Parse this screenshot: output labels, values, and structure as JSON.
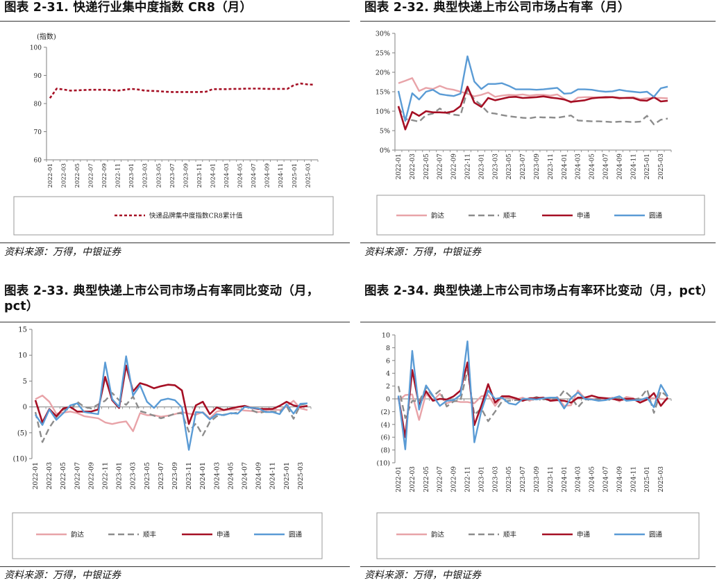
{
  "colors": {
    "yunda": "#e8a3a8",
    "sf": "#8c8c8c",
    "sto": "#a50f24",
    "zto": "#5a9bd5",
    "cr8": "#a50f24",
    "axis": "#7f7f7f"
  },
  "chart_data": [
    {
      "id": "c1",
      "type": "line",
      "title": "图表 2-31. 快递行业集中度指数 CR8（月）",
      "source": "资料来源：万得，中银证券",
      "ylabel": "(指数)",
      "ylim": [
        60,
        100
      ],
      "yticks": [
        "60",
        "70",
        "80",
        "90",
        "100"
      ],
      "x": [
        "2022-01",
        "2022-02",
        "2022-03",
        "2022-04",
        "2022-05",
        "2022-06",
        "2022-07",
        "2022-08",
        "2022-09",
        "2022-10",
        "2022-11",
        "2022-12",
        "2023-01",
        "2023-02",
        "2023-03",
        "2023-04",
        "2023-05",
        "2023-06",
        "2023-07",
        "2023-08",
        "2023-09",
        "2023-10",
        "2023-11",
        "2023-12",
        "2024-01",
        "2024-02",
        "2024-03",
        "2024-04",
        "2024-05",
        "2024-06",
        "2024-07",
        "2024-08",
        "2024-09",
        "2024-10",
        "2024-11",
        "2024-12",
        "2025-01",
        "2025-02",
        "2025-03",
        "2025-04"
      ],
      "xticks": [
        "2022-01",
        "2022-03",
        "2022-05",
        "2022-07",
        "2022-09",
        "2022-11",
        "2023-01",
        "2023-03",
        "2023-05",
        "2023-07",
        "2023-09",
        "2023-11",
        "2024-01",
        "2024-03",
        "2024-05",
        "2024-07",
        "2024-09",
        "2024-11",
        "2025-01",
        "2025-03"
      ],
      "series": [
        {
          "name": "快递品牌集中度指数CR8累计值",
          "color_key": "cr8",
          "values": [
            81.9,
            85.3,
            85.0,
            84.6,
            84.7,
            84.8,
            84.9,
            84.9,
            84.9,
            84.8,
            84.6,
            84.9,
            85.2,
            85.0,
            84.6,
            84.5,
            84.4,
            84.2,
            84.1,
            84.1,
            84.1,
            84.1,
            84.1,
            84.2,
            85.1,
            85.1,
            85.1,
            85.2,
            85.2,
            85.3,
            85.3,
            85.3,
            85.2,
            85.2,
            85.2,
            85.2,
            86.6,
            87.1,
            86.8,
            86.7
          ]
        }
      ]
    },
    {
      "id": "c2",
      "type": "line",
      "title": "图表 2-32. 典型快递上市公司市场占有率（月）",
      "source": "资料来源：万得，中银证券",
      "ylim": [
        0,
        30
      ],
      "yticks": [
        "0%",
        "5%",
        "10%",
        "15%",
        "20%",
        "25%",
        "30%"
      ],
      "x": [
        "2022-01",
        "2022-02",
        "2022-03",
        "2022-04",
        "2022-05",
        "2022-06",
        "2022-07",
        "2022-08",
        "2022-09",
        "2022-10",
        "2022-11",
        "2022-12",
        "2023-01",
        "2023-02",
        "2023-03",
        "2023-04",
        "2023-05",
        "2023-06",
        "2023-07",
        "2023-08",
        "2023-09",
        "2023-10",
        "2023-11",
        "2023-12",
        "2024-01",
        "2024-02",
        "2024-03",
        "2024-04",
        "2024-05",
        "2024-06",
        "2024-07",
        "2024-08",
        "2024-09",
        "2024-10",
        "2024-11",
        "2024-12",
        "2025-01",
        "2025-02",
        "2025-03",
        "2025-04"
      ],
      "xticks": [
        "2022-01",
        "2022-03",
        "2022-05",
        "2022-07",
        "2022-09",
        "2022-11",
        "2023-01",
        "2023-03",
        "2023-05",
        "2023-07",
        "2023-09",
        "2023-11",
        "2024-01",
        "2024-03",
        "2024-05",
        "2024-07",
        "2024-09",
        "2024-11",
        "2025-01",
        "2025-03"
      ],
      "series": [
        {
          "name": "韵达",
          "color_key": "yunda",
          "dash": "",
          "values": [
            17.2,
            17.8,
            18.5,
            15.2,
            16.0,
            15.7,
            16.5,
            15.8,
            15.5,
            15.0,
            14.5,
            13.8,
            14.2,
            14.8,
            13.7,
            14.0,
            14.2,
            14.1,
            14.3,
            14.0,
            14.2,
            14.2,
            14.0,
            14.3,
            13.2,
            12.2,
            13.5,
            13.6,
            13.6,
            13.5,
            13.4,
            13.6,
            13.2,
            13.5,
            13.6,
            13.1,
            13.3,
            13.4,
            13.4,
            13.3
          ]
        },
        {
          "name": "顺丰",
          "color_key": "sf",
          "dash": "9,5",
          "values": [
            11.0,
            8.0,
            7.7,
            7.3,
            9.0,
            9.4,
            10.7,
            9.5,
            9.1,
            8.9,
            15.5,
            13.0,
            11.5,
            9.6,
            9.4,
            9.0,
            8.7,
            8.5,
            8.3,
            8.2,
            8.5,
            8.4,
            8.4,
            8.3,
            8.6,
            8.9,
            7.6,
            7.5,
            7.4,
            7.4,
            7.3,
            7.2,
            7.3,
            7.3,
            7.2,
            7.3,
            8.8,
            6.6,
            7.8,
            8.1
          ]
        },
        {
          "name": "申通",
          "color_key": "sto",
          "dash": "",
          "values": [
            11.3,
            5.3,
            9.8,
            8.8,
            10.0,
            9.7,
            9.7,
            9.6,
            10.0,
            11.3,
            16.3,
            12.2,
            11.1,
            13.4,
            12.8,
            13.2,
            13.6,
            13.7,
            13.4,
            13.5,
            13.6,
            13.8,
            13.5,
            13.3,
            13.0,
            12.4,
            12.6,
            12.8,
            13.3,
            13.5,
            13.6,
            13.6,
            13.4,
            13.4,
            13.4,
            12.8,
            12.7,
            13.6,
            12.5,
            12.7
          ]
        },
        {
          "name": "圆通",
          "color_key": "zto",
          "dash": "",
          "values": [
            15.2,
            7.5,
            14.6,
            13.0,
            15.0,
            15.5,
            14.4,
            14.1,
            13.9,
            14.5,
            24.1,
            17.6,
            15.7,
            17.0,
            17.0,
            17.2,
            16.5,
            15.6,
            15.6,
            15.6,
            15.5,
            15.6,
            15.8,
            16.0,
            14.5,
            14.6,
            15.6,
            15.6,
            15.5,
            15.2,
            15.0,
            15.1,
            15.5,
            15.2,
            15.0,
            14.8,
            15.0,
            13.7,
            15.9,
            16.3
          ]
        }
      ]
    },
    {
      "id": "c3",
      "type": "line",
      "title": "图表 2-33. 典型快递上市公司市场占有率同比变动（月，pct）",
      "source": "资料来源：万得，中银证券",
      "ylim": [
        -10,
        15
      ],
      "yticks": [
        "(10)",
        "(5)",
        "0",
        "5",
        "10",
        "15"
      ],
      "x": [
        "2022-01",
        "2022-02",
        "2022-03",
        "2022-04",
        "2022-05",
        "2022-06",
        "2022-07",
        "2022-08",
        "2022-09",
        "2022-10",
        "2022-11",
        "2022-12",
        "2023-01",
        "2023-02",
        "2023-03",
        "2023-04",
        "2023-05",
        "2023-06",
        "2023-07",
        "2023-08",
        "2023-09",
        "2023-10",
        "2023-11",
        "2023-12",
        "2024-01",
        "2024-02",
        "2024-03",
        "2024-04",
        "2024-05",
        "2024-06",
        "2024-07",
        "2024-08",
        "2024-09",
        "2024-10",
        "2024-11",
        "2024-12",
        "2025-01",
        "2025-02",
        "2025-03",
        "2025-04"
      ],
      "xticks": [
        "2022-01",
        "2022-03",
        "2022-05",
        "2022-07",
        "2022-09",
        "2022-11",
        "2023-01",
        "2023-03",
        "2023-05",
        "2023-07",
        "2023-09",
        "2023-11",
        "2024-01",
        "2024-03",
        "2024-05",
        "2024-07",
        "2024-09",
        "2024-11",
        "2025-01",
        "2025-03"
      ],
      "series": [
        {
          "name": "韵达",
          "color_key": "yunda",
          "dash": "",
          "values": [
            1.5,
            2.2,
            1.0,
            -1.3,
            -1.1,
            -0.9,
            -1.2,
            -1.8,
            -2.0,
            -2.2,
            -3.0,
            -3.3,
            -3.0,
            -2.8,
            -4.7,
            -1.2,
            -1.6,
            -1.6,
            -1.9,
            -1.7,
            -1.4,
            -1.0,
            -1.3,
            -1.5,
            -1.0,
            -2.2,
            -0.9,
            -0.6,
            -0.5,
            -0.5,
            -0.7,
            -0.8,
            -1.0,
            -0.7,
            -0.5,
            -0.6,
            0.1,
            1.2,
            -0.3,
            -0.6
          ]
        },
        {
          "name": "顺丰",
          "color_key": "sf",
          "dash": "9,5",
          "values": [
            -1.0,
            -6.8,
            -4.0,
            -2.0,
            -0.5,
            -0.5,
            1.0,
            0.0,
            -0.3,
            0.5,
            1.2,
            2.7,
            1.3,
            0.4,
            2.0,
            -0.8,
            -1.2,
            -1.7,
            -2.2,
            -1.8,
            -1.3,
            -1.2,
            -4.8,
            -3.2,
            -5.5,
            -2.9,
            -1.8,
            -1.5,
            -1.3,
            -1.1,
            null,
            -0.6,
            -1.2,
            -0.9,
            -0.9,
            -1.0,
            0.2,
            -2.3,
            0.4,
            0.7
          ]
        },
        {
          "name": "申通",
          "color_key": "sto",
          "dash": "",
          "values": [
            1.3,
            -3.0,
            -0.4,
            -1.8,
            -0.3,
            0.0,
            -0.9,
            -0.9,
            -0.9,
            -0.5,
            5.8,
            1.3,
            -0.2,
            8.0,
            3.0,
            4.6,
            4.2,
            3.6,
            4.0,
            4.3,
            4.2,
            3.2,
            -3.3,
            0.3,
            1.0,
            -1.4,
            -0.1,
            -0.6,
            -0.3,
            0.0,
            0.2,
            -0.2,
            -0.4,
            -0.4,
            -0.4,
            0.2,
            1.0,
            0.3,
            0.0,
            0.2
          ]
        },
        {
          "name": "圆通",
          "color_key": "zto",
          "dash": "",
          "values": [
            -1.5,
            -3.5,
            -0.5,
            -2.5,
            -1.2,
            0.3,
            0.7,
            -1.0,
            -1.2,
            -1.4,
            8.6,
            1.5,
            0.0,
            9.8,
            2.2,
            4.2,
            1.0,
            -0.2,
            1.3,
            1.6,
            1.3,
            -0.1,
            -8.3,
            -1.0,
            -1.1,
            -2.4,
            -1.4,
            -1.6,
            -1.2,
            -1.3,
            0.0,
            -0.2,
            -0.3,
            -1.0,
            -1.0,
            -1.4,
            0.5,
            -1.3,
            0.6,
            0.7
          ]
        }
      ]
    },
    {
      "id": "c4",
      "type": "line",
      "title": "图表 2-34. 典型快递上市公司市场占有率环比变动（月，pct）",
      "source": "资料来源：万得，中银证券",
      "ylim": [
        -10,
        10
      ],
      "yticks": [
        "(10)",
        "(8)",
        "(6)",
        "(4)",
        "(2)",
        "0",
        "2",
        "4",
        "6",
        "8",
        "10"
      ],
      "x": [
        "2022-01",
        "2022-02",
        "2022-03",
        "2022-04",
        "2022-05",
        "2022-06",
        "2022-07",
        "2022-08",
        "2022-09",
        "2022-10",
        "2022-11",
        "2022-12",
        "2023-01",
        "2023-02",
        "2023-03",
        "2023-04",
        "2023-05",
        "2023-06",
        "2023-07",
        "2023-08",
        "2023-09",
        "2023-10",
        "2023-11",
        "2023-12",
        "2024-01",
        "2024-02",
        "2024-03",
        "2024-04",
        "2024-05",
        "2024-06",
        "2024-07",
        "2024-08",
        "2024-09",
        "2024-10",
        "2024-11",
        "2024-12",
        "2025-01",
        "2025-02",
        "2025-03",
        "2025-04"
      ],
      "xticks": [
        "2022-01",
        "2022-03",
        "2022-05",
        "2022-07",
        "2022-09",
        "2022-11",
        "2023-01",
        "2023-03",
        "2023-05",
        "2023-07",
        "2023-09",
        "2023-11",
        "2024-01",
        "2024-03",
        "2024-05",
        "2024-07",
        "2024-09",
        "2024-11",
        "2025-01",
        "2025-03"
      ],
      "series": [
        {
          "name": "韵达",
          "color_key": "yunda",
          "dash": "",
          "values": [
            -0.3,
            0.6,
            0.7,
            -3.3,
            0.8,
            -0.3,
            0.8,
            -0.7,
            -0.3,
            -0.5,
            -0.5,
            -0.7,
            0.4,
            0.6,
            -1.1,
            0.3,
            0.2,
            -0.1,
            0.2,
            -0.3,
            0.2,
            0.0,
            -0.2,
            0.3,
            -1.1,
            -1.0,
            1.3,
            0.1,
            0.0,
            -0.1,
            -0.1,
            0.2,
            -0.4,
            0.3,
            0.1,
            -0.5,
            0.2,
            0.1,
            0.0,
            -0.1
          ]
        },
        {
          "name": "顺丰",
          "color_key": "sf",
          "dash": "9,5",
          "values": [
            2.0,
            -3.0,
            -0.3,
            -0.4,
            1.7,
            0.4,
            1.3,
            -1.2,
            -0.4,
            -0.2,
            4.5,
            -2.5,
            -1.5,
            -3.5,
            -2.0,
            -0.4,
            -0.3,
            -0.2,
            -0.2,
            -0.1,
            0.3,
            -0.1,
            0.0,
            -0.1,
            1.3,
            0.3,
            -1.3,
            -0.1,
            -0.1,
            0.0,
            -0.1,
            -0.1,
            0.1,
            0.0,
            -0.1,
            0.1,
            1.5,
            -2.2,
            1.2,
            0.3
          ]
        },
        {
          "name": "申通",
          "color_key": "sto",
          "dash": "",
          "values": [
            0.3,
            -6.0,
            4.5,
            -1.0,
            1.2,
            -0.3,
            0.0,
            -0.1,
            0.4,
            1.3,
            5.7,
            -4.1,
            -1.1,
            2.3,
            -0.6,
            0.4,
            0.4,
            0.1,
            -0.3,
            0.1,
            0.1,
            0.2,
            -0.3,
            -0.2,
            -0.3,
            -0.6,
            0.2,
            0.2,
            0.5,
            0.2,
            0.1,
            0.0,
            -0.2,
            0.0,
            0.0,
            -0.6,
            -0.1,
            0.9,
            -1.1,
            0.2
          ]
        },
        {
          "name": "圆通",
          "color_key": "zto",
          "dash": "",
          "values": [
            0.5,
            -7.9,
            7.5,
            -1.7,
            2.1,
            0.5,
            -1.1,
            -0.3,
            -0.2,
            0.6,
            9.0,
            -6.8,
            -1.9,
            1.3,
            0.0,
            0.2,
            -0.7,
            -0.9,
            0.0,
            0.0,
            -0.1,
            0.1,
            0.2,
            0.2,
            -1.5,
            0.1,
            1.0,
            0.0,
            -0.1,
            -0.3,
            -0.2,
            0.1,
            0.4,
            -0.3,
            -0.2,
            -0.2,
            0.2,
            -1.3,
            2.2,
            0.4
          ]
        }
      ]
    }
  ]
}
